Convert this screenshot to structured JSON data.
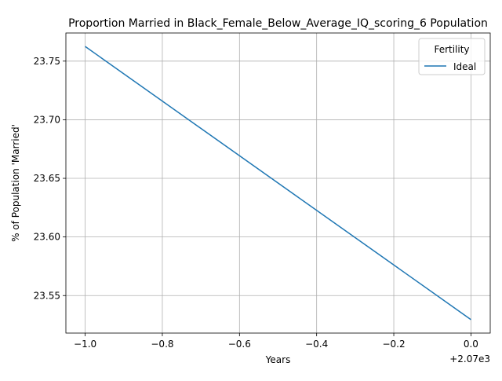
{
  "chart_data": {
    "type": "line",
    "title": "Proportion Married in Black_Female_Below_Average_IQ_scoring_6 Population",
    "xlabel": "Years",
    "ylabel": "% of Population 'Married'",
    "x_offset_text": "+2.07e3",
    "x": [
      2069,
      2070
    ],
    "series": [
      {
        "name": "Ideal",
        "values": [
          23.7625,
          23.5295
        ],
        "color": "#1f77b4"
      }
    ],
    "xlim": [
      2068.95,
      2070.05
    ],
    "ylim": [
      23.518,
      23.774
    ],
    "xticks": [
      2069.0,
      2069.2,
      2069.4,
      2069.6,
      2069.8,
      2070.0
    ],
    "xtick_labels": [
      "−1.0",
      "−0.8",
      "−0.6",
      "−0.4",
      "−0.2",
      "0.0"
    ],
    "yticks": [
      23.55,
      23.6,
      23.65,
      23.7,
      23.75
    ],
    "ytick_labels": [
      "23.55",
      "23.60",
      "23.65",
      "23.70",
      "23.75"
    ],
    "grid": true,
    "legend": {
      "title": "Fertility",
      "placement": "top-right"
    }
  }
}
